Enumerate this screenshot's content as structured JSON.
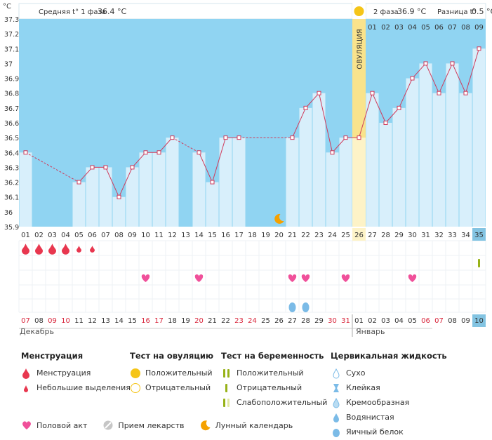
{
  "chart_data": {
    "type": "line",
    "y_unit": "°C",
    "ylim": [
      35.9,
      37.3
    ],
    "yticks": [
      "35.9",
      "36",
      "36.1",
      "36.2",
      "36.3",
      "36.4",
      "36.5",
      "36.6",
      "36.7",
      "36.8",
      "36.9",
      "37",
      "37.1",
      "37.2",
      "37.3"
    ],
    "cycle_days": [
      "01",
      "02",
      "03",
      "04",
      "05",
      "06",
      "07",
      "08",
      "09",
      "10",
      "11",
      "12",
      "13",
      "14",
      "15",
      "16",
      "17",
      "18",
      "19",
      "20",
      "21",
      "22",
      "23",
      "24",
      "25",
      "26",
      "27",
      "28",
      "29",
      "30",
      "31",
      "32",
      "33",
      "34",
      "35"
    ],
    "post_ov_days": [
      "01",
      "02",
      "03",
      "04",
      "05",
      "06",
      "07",
      "08",
      "09"
    ],
    "temperatures": [
      36.4,
      null,
      null,
      null,
      36.2,
      36.3,
      36.3,
      36.1,
      36.3,
      36.4,
      36.4,
      36.5,
      null,
      36.4,
      36.2,
      36.5,
      36.5,
      null,
      null,
      null,
      36.5,
      36.7,
      36.8,
      36.4,
      36.5,
      36.5,
      36.8,
      36.6,
      36.7,
      36.9,
      37.0,
      36.8,
      37.0,
      36.8,
      37.1
    ],
    "ovulation_day": "26",
    "ovulation_label": "ОВУЛЯЦИЯ",
    "phase1_label": "Средняя t° 1 фаза",
    "phase1_avg": "36.4 °C",
    "phase2_label": "2 фаза",
    "phase2_avg": "36.9 °C",
    "diff_label": "Разница t°",
    "diff_value": "0.5 °C",
    "dates": [
      "07",
      "08",
      "09",
      "10",
      "11",
      "12",
      "13",
      "14",
      "15",
      "16",
      "17",
      "18",
      "19",
      "20",
      "21",
      "22",
      "23",
      "24",
      "25",
      "26",
      "27",
      "28",
      "29",
      "30",
      "31",
      "01",
      "02",
      "03",
      "04",
      "05",
      "06",
      "07",
      "08",
      "09",
      "10"
    ],
    "red_dates": [
      "09",
      "10",
      "16",
      "17",
      "20",
      "23",
      "24",
      "30",
      "31",
      "06",
      "07"
    ],
    "months": [
      "Декабрь",
      "Январь"
    ],
    "menstruation": {
      "days": [
        "01",
        "02",
        "03",
        "04"
      ],
      "light_days": [
        "05",
        "06"
      ]
    },
    "intercourse_days": [
      "10",
      "14",
      "21",
      "22",
      "25",
      "30"
    ],
    "cervical_days": [
      "21",
      "22"
    ],
    "moon_day": "20",
    "test_day": "35",
    "colors": {
      "plot_bg": "#90d4f2",
      "bar": "#d8effb",
      "line": "#d03a5a",
      "ovulation": "#f9e38c",
      "accent": "#83c4e2",
      "menstruation": "#e8374f",
      "heart": "#f0509a",
      "drop": "#7bbbe7",
      "moon": "#f5a100",
      "sun": "#f5c518",
      "test_green": "#97b218"
    }
  },
  "legend": {
    "menstruation": {
      "title": "Менструация",
      "items": [
        "Менструация",
        "Небольшие выделения"
      ]
    },
    "ovulation_test": {
      "title": "Тест на овуляцию",
      "items": [
        "Положительный",
        "Отрицательный"
      ]
    },
    "pregnancy_test": {
      "title": "Тест на беременность",
      "items": [
        "Положительный",
        "Отрицательный",
        "Слабоположительный"
      ]
    },
    "cervical": {
      "title": "Цервикальная жидкость",
      "items": [
        "Сухо",
        "Клейкая",
        "Кремообразная",
        "Водянистая",
        "Яичный белок"
      ]
    },
    "bottom": {
      "intercourse": "Половой акт",
      "medicine": "Прием лекарств",
      "moon": "Лунный календарь"
    }
  }
}
